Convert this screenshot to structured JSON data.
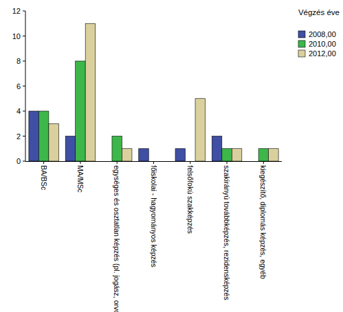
{
  "chart_data": {
    "type": "bar",
    "legend_title": "Végzés éve",
    "categories": [
      "BA/BSc",
      "MA/MSc",
      "egységes és osztatlan képzés (pl. jogász, orvoskép...",
      "főiskolai - hagyományos képzés",
      "felsőfokú szakképzés",
      "szakirányú továbbképzés, rezidensképzés",
      "kiegészítő, diplomás képzés, egyéb"
    ],
    "series": [
      {
        "name": "2008,00",
        "color": "#3f4fa3",
        "values": [
          4,
          2,
          null,
          1,
          1,
          2,
          null
        ]
      },
      {
        "name": "2010,00",
        "color": "#3db64a",
        "values": [
          4,
          8,
          2,
          null,
          null,
          1,
          1
        ]
      },
      {
        "name": "2012,00",
        "color": "#d9d09d",
        "values": [
          3,
          11,
          1,
          null,
          5,
          1,
          1
        ]
      }
    ],
    "ylim": [
      0,
      12
    ],
    "yticks": [
      0,
      2,
      4,
      6,
      8,
      10,
      12
    ],
    "grid": false,
    "legend": "upper right"
  }
}
